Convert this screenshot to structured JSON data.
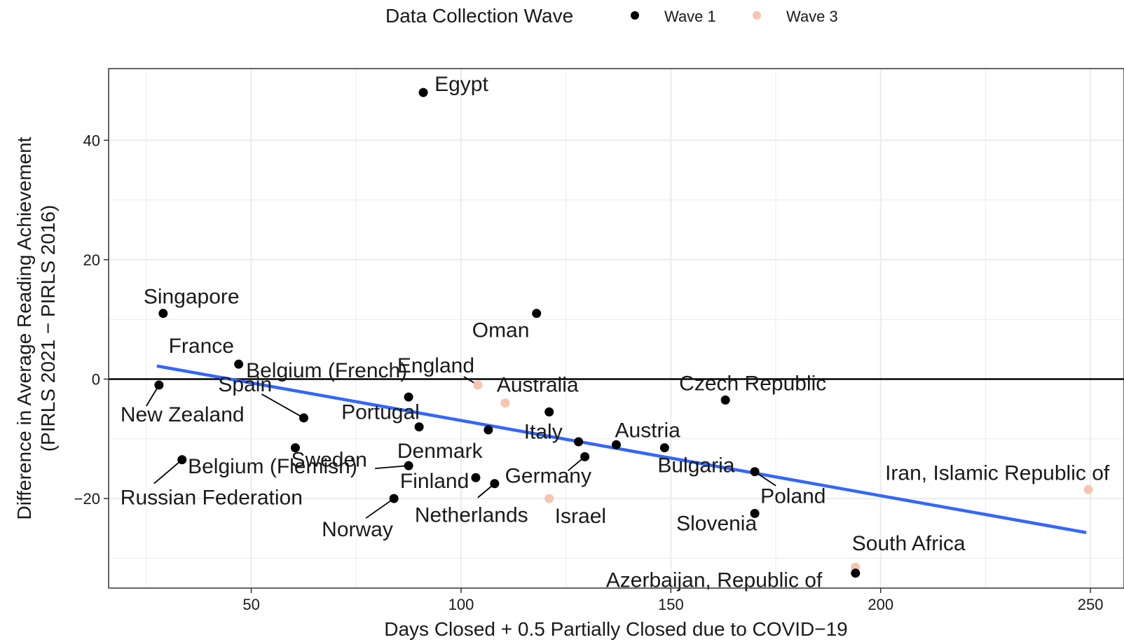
{
  "legend": {
    "title": "Data Collection Wave",
    "entries": [
      {
        "label": "Wave 1",
        "color": "#000000"
      },
      {
        "label": "Wave 3",
        "color": "#f7c4b0"
      }
    ]
  },
  "colors": {
    "wave1": "#000000",
    "wave3": "#f7c4b0",
    "trend": "#3366ff",
    "grid": "#ebebeb",
    "panel_border": "#333333"
  },
  "chart_data": {
    "type": "scatter",
    "xlabel": "Days Closed + 0.5 Partially Closed due to COVID−19",
    "ylabel_line1": "Difference in Average Reading Achievement",
    "ylabel_line2": "(PIRLS 2021 − PIRLS 2016)",
    "xlim": [
      16,
      258
    ],
    "ylim": [
      -35,
      52
    ],
    "x_ticks": [
      50,
      100,
      150,
      200,
      250
    ],
    "y_ticks": [
      -20,
      0,
      20,
      40
    ],
    "x_tick_labels": [
      "50",
      "100",
      "150",
      "200",
      "250"
    ],
    "y_tick_labels": [
      "−20",
      "0",
      "20",
      "40"
    ],
    "grid": true,
    "legend_position": "top",
    "reference_line_y": 0,
    "trend": {
      "x": [
        27.5,
        249
      ],
      "y": [
        2.2,
        -25.7
      ]
    },
    "points": [
      {
        "country": "Egypt",
        "x": 91,
        "y": 48,
        "wave": "Wave 1"
      },
      {
        "country": "Singapore",
        "x": 29,
        "y": 11,
        "wave": "Wave 1"
      },
      {
        "country": "Oman",
        "x": 118,
        "y": 11,
        "wave": "Wave 1"
      },
      {
        "country": "France",
        "x": 47,
        "y": 2.5,
        "wave": "Wave 1"
      },
      {
        "country": "New Zealand",
        "x": 28,
        "y": -1,
        "wave": "Wave 1"
      },
      {
        "country": "England",
        "x": 104,
        "y": -1,
        "wave": "Wave 3"
      },
      {
        "country": "Australia",
        "x": 110.5,
        "y": -4,
        "wave": "Wave 3"
      },
      {
        "country": "Spain",
        "x": 62.5,
        "y": -6.5,
        "wave": "Wave 1"
      },
      {
        "country": "Belgium (French)",
        "x": 87.5,
        "y": -3,
        "wave": "Wave 1"
      },
      {
        "country": "Portugal",
        "x": 90,
        "y": -8,
        "wave": "Wave 1"
      },
      {
        "country": "Czech Republic",
        "x": 163,
        "y": -3.5,
        "wave": "Wave 1"
      },
      {
        "country": "Italy",
        "x": 121,
        "y": -5.5,
        "wave": "Wave 1"
      },
      {
        "country": "Sweden",
        "x": 60.5,
        "y": -11.5,
        "wave": "Wave 1"
      },
      {
        "country": "Denmark",
        "x": 106.5,
        "y": -8.5,
        "wave": "Wave 1"
      },
      {
        "country": "Austria",
        "x": 137,
        "y": -11,
        "wave": "Wave 1"
      },
      {
        "country": "Bulgaria",
        "x": 148.5,
        "y": -11.5,
        "wave": "Wave 1"
      },
      {
        "country": "Belgium (Flemish)",
        "x": 87.5,
        "y": -14.5,
        "wave": "Wave 1"
      },
      {
        "country": "Russian Federation",
        "x": 33.5,
        "y": -13.5,
        "wave": "Wave 1"
      },
      {
        "country": "Finland",
        "x": 103.5,
        "y": -16.5,
        "wave": "Wave 1"
      },
      {
        "country": "Germany",
        "x": 129.5,
        "y": -13,
        "wave": "Wave 1"
      },
      {
        "country": "Netherlands",
        "x": 108,
        "y": -17.5,
        "wave": "Wave 1"
      },
      {
        "country": "Israel",
        "x": 121,
        "y": -20,
        "wave": "Wave 3"
      },
      {
        "country": "Norway",
        "x": 84,
        "y": -20,
        "wave": "Wave 1"
      },
      {
        "country": "Poland",
        "x": 170,
        "y": -15.5,
        "wave": "Wave 1"
      },
      {
        "country": "Slovenia",
        "x": 170,
        "y": -22.5,
        "wave": "Wave 1"
      },
      {
        "country": "Iran, Islamic Republic of",
        "x": 249.5,
        "y": -18.5,
        "wave": "Wave 3"
      },
      {
        "country": "South Africa",
        "x": 194,
        "y": -31.5,
        "wave": "Wave 3"
      },
      {
        "country": "Azerbaijan, Republic of",
        "x": 194,
        "y": -32.5,
        "wave": "Wave 1"
      }
    ],
    "extra_points": [
      {
        "x": 128,
        "y": -10.5,
        "wave": "Wave 1"
      }
    ]
  }
}
